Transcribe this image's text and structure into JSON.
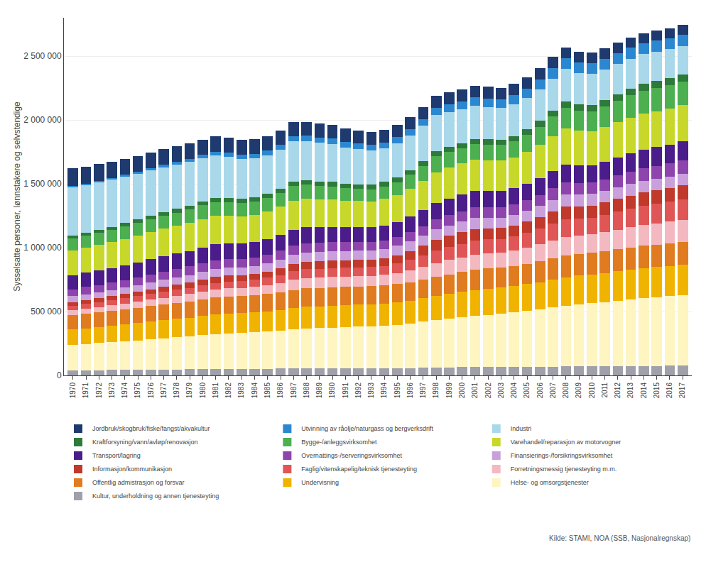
{
  "chart_data": {
    "type": "bar",
    "stacked": true,
    "grid": true,
    "legend": "bottom",
    "y_label": "Sysselsatte personer, lønnstakere og selvstendige",
    "annotations": [
      {
        "text": "Kilde: STAMI, NOA (SSB, Nasjonalregnskap)"
      }
    ],
    "x": [
      1970,
      1971,
      1972,
      1973,
      1974,
      1975,
      1976,
      1977,
      1978,
      1979,
      1980,
      1981,
      1982,
      1983,
      1984,
      1985,
      1986,
      1987,
      1988,
      1989,
      1990,
      1991,
      1992,
      1993,
      1994,
      1995,
      1996,
      1997,
      1998,
      1999,
      2000,
      2001,
      2002,
      2003,
      2004,
      2005,
      2006,
      2007,
      2008,
      2009,
      2010,
      2011,
      2012,
      2013,
      2014,
      2015,
      2016,
      2017
    ],
    "xlim": [
      1969.3,
      2017.7
    ],
    "xticks": [
      1970,
      1971,
      1972,
      1973,
      1974,
      1975,
      1976,
      1977,
      1978,
      1979,
      1980,
      1981,
      1982,
      1983,
      1984,
      1985,
      1986,
      1987,
      1988,
      1989,
      1990,
      1991,
      1992,
      1993,
      1994,
      1995,
      1996,
      1997,
      1998,
      1999,
      2000,
      2001,
      2002,
      2003,
      2004,
      2005,
      2006,
      2007,
      2008,
      2009,
      2010,
      2011,
      2012,
      2013,
      2014,
      2015,
      2016,
      2017
    ],
    "ylim": [
      0,
      2800000
    ],
    "yticks": [
      0,
      {
        "value": 500000,
        "label": "500 000"
      },
      {
        "value": 1000000,
        "label": "1 000 000"
      },
      {
        "value": 1500000,
        "label": "1 500 000"
      },
      {
        "value": 2000000,
        "label": "2 000 000"
      },
      {
        "value": 2500000,
        "label": "2 500 000"
      }
    ],
    "series": [
      {
        "name": "Kultur, underholdning og annen tjenesteyting",
        "color": "#a0a0aa",
        "values": [
          40000,
          41000,
          41000,
          42000,
          43000,
          44000,
          45000,
          46000,
          47000,
          48000,
          49000,
          50000,
          50000,
          50000,
          51000,
          52000,
          53000,
          54000,
          54000,
          54000,
          54000,
          54000,
          54000,
          54000,
          55000,
          56000,
          58000,
          60000,
          62000,
          63000,
          64000,
          65000,
          64000,
          64000,
          65000,
          66000,
          67000,
          69000,
          71000,
          70000,
          70000,
          71000,
          72000,
          73000,
          74000,
          75000,
          76000,
          77000
        ]
      },
      {
        "name": "Helse- og omsorgstjenester",
        "color": "#fef5c0",
        "values": [
          200000,
          206000,
          212000,
          218000,
          224000,
          231000,
          238000,
          245000,
          252000,
          259000,
          267000,
          275000,
          280000,
          283000,
          287000,
          292000,
          299000,
          308000,
          315000,
          318000,
          321000,
          324000,
          328000,
          331000,
          335000,
          341000,
          349000,
          360000,
          372000,
          382000,
          392000,
          403000,
          411000,
          418000,
          427000,
          438000,
          450000,
          464000,
          476000,
          487000,
          495000,
          503000,
          513000,
          522000,
          531000,
          538000,
          545000,
          552000
        ]
      },
      {
        "name": "Undervisning",
        "color": "#f0b400",
        "values": [
          120000,
          122000,
          125000,
          128000,
          131000,
          134000,
          137000,
          140000,
          143000,
          145000,
          148000,
          151000,
          153000,
          154000,
          156000,
          158000,
          161000,
          165000,
          168000,
          169000,
          170000,
          171000,
          172000,
          172000,
          173000,
          175000,
          178000,
          183000,
          188000,
          193000,
          197000,
          201000,
          204000,
          205000,
          207000,
          210000,
          213000,
          217000,
          221000,
          225000,
          226000,
          227000,
          229000,
          232000,
          234000,
          236000,
          237000,
          239000
        ]
      },
      {
        "name": "Offentlig admistrasjon og forsvar",
        "color": "#e07b20",
        "values": [
          110000,
          112000,
          114000,
          116000,
          118000,
          120000,
          122000,
          124000,
          126000,
          128000,
          131000,
          133000,
          134000,
          134000,
          135000,
          137000,
          139000,
          142000,
          144000,
          144000,
          144000,
          144000,
          143000,
          142000,
          142000,
          143000,
          145000,
          147000,
          150000,
          153000,
          156000,
          158000,
          158000,
          158000,
          159000,
          161000,
          164000,
          166000,
          169000,
          170000,
          170000,
          172000,
          173000,
          174000,
          175000,
          176000,
          176000,
          177000
        ]
      },
      {
        "name": "Forretningsmessig tjenesteyting m.m.",
        "color": "#f4b8c0",
        "values": [
          40000,
          42000,
          43000,
          45000,
          47000,
          49000,
          51000,
          53000,
          55000,
          57000,
          60000,
          63000,
          64000,
          63000,
          64000,
          67000,
          72000,
          79000,
          82000,
          82000,
          82000,
          81000,
          80000,
          80000,
          82000,
          86000,
          92000,
          99000,
          108000,
          112000,
          116000,
          120000,
          119000,
          117000,
          119000,
          125000,
          132000,
          141000,
          148000,
          143000,
          142000,
          147000,
          152000,
          158000,
          162000,
          165000,
          169000,
          173000
        ]
      },
      {
        "name": "Faglig/vitenskapelig/teknisk tjenesteyting",
        "color": "#e05555",
        "values": [
          35000,
          36000,
          37000,
          38000,
          40000,
          42000,
          44000,
          46000,
          47000,
          49000,
          51000,
          53000,
          54000,
          54000,
          55000,
          58000,
          62000,
          67000,
          69000,
          69000,
          69000,
          69000,
          69000,
          69000,
          71000,
          75000,
          81000,
          88000,
          97000,
          101000,
          105000,
          109000,
          108000,
          107000,
          110000,
          115000,
          122000,
          130000,
          137000,
          133000,
          132000,
          136000,
          142000,
          147000,
          151000,
          155000,
          158000,
          162000
        ]
      },
      {
        "name": "Informasjon/kommunikasjon",
        "color": "#c0392b",
        "values": [
          30000,
          31000,
          32000,
          33000,
          35000,
          36000,
          37000,
          39000,
          40000,
          41000,
          43000,
          45000,
          46000,
          46000,
          47000,
          49000,
          52000,
          55000,
          57000,
          58000,
          59000,
          59000,
          59000,
          59000,
          61000,
          65000,
          71000,
          78000,
          85000,
          88000,
          91000,
          91000,
          88000,
          85000,
          86000,
          88000,
          91000,
          96000,
          100000,
          96000,
          95000,
          97000,
          100000,
          102000,
          104000,
          106000,
          108000,
          110000
        ]
      },
      {
        "name": "Finansierings-/forsikringsvirksomhet",
        "color": "#c9a0dc",
        "values": [
          45000,
          46000,
          47000,
          48000,
          49000,
          51000,
          53000,
          55000,
          57000,
          59000,
          61000,
          63000,
          62000,
          61000,
          62000,
          65000,
          68000,
          72000,
          74000,
          74000,
          74000,
          73000,
          72000,
          71000,
          72000,
          73000,
          75000,
          78000,
          82000,
          83000,
          84000,
          85000,
          83000,
          82000,
          83000,
          85000,
          87000,
          90000,
          93000,
          91000,
          90000,
          90000,
          90000,
          90000,
          90000,
          89000,
          89000,
          89000
        ]
      },
      {
        "name": "Overnattings-/serveringsvirksomhet",
        "color": "#8e44ad",
        "values": [
          55000,
          56000,
          57000,
          58000,
          60000,
          62000,
          63000,
          65000,
          66000,
          67000,
          68000,
          69000,
          68000,
          67000,
          67000,
          68000,
          70000,
          73000,
          72000,
          70000,
          69000,
          67000,
          66000,
          65000,
          66000,
          68000,
          72000,
          75000,
          79000,
          80000,
          81000,
          82000,
          81000,
          80000,
          81000,
          83000,
          87000,
          91000,
          95000,
          91000,
          90000,
          92000,
          95000,
          97000,
          99000,
          100000,
          101000,
          102000
        ]
      },
      {
        "name": "Transport/lagring",
        "color": "#4a1d8a",
        "values": [
          110000,
          111000,
          113000,
          114000,
          116000,
          117000,
          119000,
          120000,
          121000,
          122000,
          124000,
          125000,
          123000,
          121000,
          121000,
          122000,
          124000,
          126000,
          124000,
          122000,
          121000,
          119000,
          117000,
          116000,
          117000,
          118000,
          121000,
          124000,
          128000,
          129000,
          130000,
          131000,
          129000,
          127000,
          127000,
          129000,
          132000,
          137000,
          141000,
          137000,
          136000,
          138000,
          140000,
          142000,
          145000,
          147000,
          149000,
          151000
        ]
      },
      {
        "name": "Varehandel/reparasjon av motorvogner",
        "color": "#c8d82a",
        "values": [
          195000,
          197000,
          200000,
          203000,
          206000,
          209000,
          212000,
          215000,
          217000,
          219000,
          221000,
          222000,
          218000,
          214000,
          213000,
          215000,
          220000,
          226000,
          222000,
          216000,
          213000,
          207000,
          205000,
          204000,
          207000,
          212000,
          220000,
          230000,
          240000,
          243000,
          244000,
          246000,
          241000,
          239000,
          243000,
          250000,
          261000,
          274000,
          282000,
          271000,
          267000,
          271000,
          277000,
          281000,
          284000,
          282000,
          281000,
          282000
        ]
      },
      {
        "name": "Bygge-/anleggsvirksomhet",
        "color": "#4caf50",
        "values": [
          90000,
          92000,
          93000,
          94000,
          96000,
          98000,
          100000,
          102000,
          104000,
          106000,
          108000,
          108000,
          106000,
          104000,
          103000,
          105000,
          108000,
          115000,
          112000,
          107000,
          103000,
          98000,
          95000,
          94000,
          96000,
          101000,
          108000,
          116000,
          123000,
          121000,
          118000,
          119000,
          121000,
          121000,
          124000,
          131000,
          140000,
          151000,
          162000,
          157000,
          155000,
          161000,
          167000,
          174000,
          179000,
          182000,
          184000,
          186000
        ]
      },
      {
        "name": "Kraftforsyning/vann/avløp/renovasjon",
        "color": "#2d7a3a",
        "values": [
          25000,
          25000,
          26000,
          26000,
          27000,
          27000,
          28000,
          28000,
          29000,
          30000,
          31000,
          32000,
          32000,
          32000,
          33000,
          33000,
          34000,
          35000,
          35000,
          36000,
          36000,
          36000,
          37000,
          37000,
          37000,
          38000,
          38000,
          39000,
          40000,
          40000,
          41000,
          41000,
          42000,
          43000,
          44000,
          45000,
          46000,
          47000,
          48000,
          49000,
          50000,
          51000,
          52000,
          54000,
          55000,
          56000,
          57000,
          58000
        ]
      },
      {
        "name": "Industri",
        "color": "#a8d8ea",
        "values": [
          380000,
          375000,
          372000,
          368000,
          365000,
          360000,
          356000,
          352000,
          348000,
          343000,
          340000,
          335000,
          322000,
          312000,
          305000,
          303000,
          307000,
          314000,
          308000,
          302000,
          296000,
          284000,
          274000,
          266000,
          264000,
          267000,
          271000,
          277000,
          283000,
          275000,
          267000,
          261000,
          252000,
          246000,
          245000,
          246000,
          249000,
          252000,
          255000,
          248000,
          241000,
          240000,
          237000,
          234000,
          231000,
          228000,
          225000,
          222000
        ]
      },
      {
        "name": "Utvinning av råolje/naturgass og bergverksdrift",
        "color": "#2b88d0",
        "values": [
          10000,
          10000,
          11000,
          12000,
          13000,
          14000,
          16000,
          18000,
          20000,
          22000,
          25000,
          28000,
          30000,
          32000,
          34000,
          36000,
          38000,
          40000,
          41000,
          42000,
          43000,
          43000,
          44000,
          44000,
          45000,
          46000,
          48000,
          51000,
          55000,
          58000,
          61000,
          64000,
          67000,
          69000,
          72000,
          75000,
          78000,
          81000,
          83000,
          83000,
          83000,
          83000,
          84000,
          84000,
          85000,
          85000,
          85000,
          85000
        ]
      },
      {
        "name": "Jordbruk/skogbruk/fiske/fangst/akvakultur",
        "color": "#1e3a6e",
        "values": [
          135000,
          133000,
          131000,
          129000,
          127000,
          125000,
          124000,
          123000,
          122000,
          121000,
          120000,
          119000,
          118000,
          117000,
          115000,
          113000,
          111000,
          110000,
          109000,
          107000,
          105000,
          104000,
          102000,
          101000,
          100000,
          99000,
          98000,
          97000,
          96000,
          95000,
          94000,
          93000,
          92000,
          91000,
          90000,
          89000,
          88000,
          87000,
          86000,
          85000,
          84000,
          83000,
          82000,
          81000,
          80000,
          79000,
          78000,
          77000
        ]
      }
    ]
  }
}
